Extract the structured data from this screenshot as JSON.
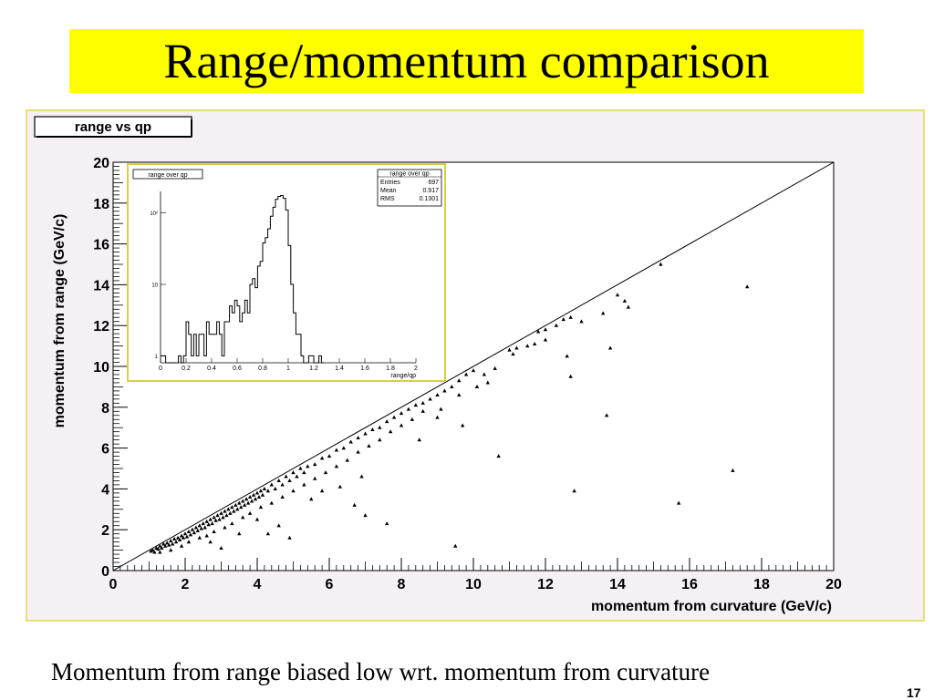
{
  "slide": {
    "title": "Range/momentum comparison",
    "caption": "Momentum from range biased low wrt. momentum from curvature",
    "number": "17"
  },
  "colors": {
    "title_bg": "#ffff00",
    "canvas_bg": "#f4f0f4",
    "frame": "#e8e070",
    "inset_frame": "#d8d040"
  },
  "chart_data": [
    {
      "type": "scatter",
      "title": "range vs qp",
      "xlabel": "momentum from curvature (GeV/c)",
      "ylabel": "momentum from range (GeV/c)",
      "xlim": [
        0,
        20
      ],
      "ylim": [
        0,
        20
      ],
      "xticks": [
        "0",
        "2",
        "4",
        "6",
        "8",
        "10",
        "12",
        "14",
        "16",
        "18",
        "20"
      ],
      "yticks": [
        "0",
        "2",
        "4",
        "6",
        "8",
        "10",
        "12",
        "14",
        "16",
        "18",
        "20"
      ],
      "grid": false,
      "reference_line": {
        "from": [
          0,
          0
        ],
        "to": [
          20,
          20
        ]
      },
      "points": [
        [
          1.05,
          0.95
        ],
        [
          1.1,
          1.0
        ],
        [
          1.15,
          0.9
        ],
        [
          1.2,
          1.1
        ],
        [
          1.25,
          1.05
        ],
        [
          1.3,
          1.2
        ],
        [
          1.35,
          1.1
        ],
        [
          1.4,
          1.3
        ],
        [
          1.45,
          1.2
        ],
        [
          1.5,
          1.35
        ],
        [
          1.55,
          1.25
        ],
        [
          1.6,
          1.45
        ],
        [
          1.65,
          1.3
        ],
        [
          1.7,
          1.55
        ],
        [
          1.75,
          1.4
        ],
        [
          1.8,
          1.6
        ],
        [
          1.85,
          1.5
        ],
        [
          1.9,
          1.7
        ],
        [
          1.95,
          1.6
        ],
        [
          2.0,
          1.8
        ],
        [
          2.05,
          1.65
        ],
        [
          2.1,
          1.9
        ],
        [
          2.15,
          1.75
        ],
        [
          2.2,
          2.0
        ],
        [
          2.25,
          1.85
        ],
        [
          2.3,
          2.1
        ],
        [
          2.35,
          1.95
        ],
        [
          2.4,
          2.2
        ],
        [
          2.45,
          2.05
        ],
        [
          2.5,
          2.3
        ],
        [
          2.55,
          2.1
        ],
        [
          2.6,
          2.4
        ],
        [
          2.65,
          2.25
        ],
        [
          2.7,
          2.5
        ],
        [
          2.75,
          2.3
        ],
        [
          2.8,
          2.6
        ],
        [
          2.85,
          2.45
        ],
        [
          2.9,
          2.7
        ],
        [
          2.95,
          2.5
        ],
        [
          3.0,
          2.8
        ],
        [
          3.05,
          2.6
        ],
        [
          3.1,
          2.9
        ],
        [
          3.15,
          2.7
        ],
        [
          3.2,
          3.0
        ],
        [
          3.25,
          2.8
        ],
        [
          3.3,
          3.1
        ],
        [
          3.35,
          2.9
        ],
        [
          3.4,
          3.2
        ],
        [
          3.45,
          3.0
        ],
        [
          3.5,
          3.3
        ],
        [
          3.55,
          3.1
        ],
        [
          3.6,
          3.4
        ],
        [
          3.65,
          3.2
        ],
        [
          3.7,
          3.5
        ],
        [
          3.75,
          3.3
        ],
        [
          3.8,
          3.6
        ],
        [
          3.85,
          3.4
        ],
        [
          3.9,
          3.7
        ],
        [
          3.95,
          3.5
        ],
        [
          4.0,
          3.8
        ],
        [
          4.05,
          3.6
        ],
        [
          4.1,
          3.9
        ],
        [
          4.15,
          3.7
        ],
        [
          4.2,
          4.0
        ],
        [
          4.3,
          3.9
        ],
        [
          4.4,
          4.2
        ],
        [
          4.5,
          4.0
        ],
        [
          4.6,
          4.4
        ],
        [
          4.7,
          4.2
        ],
        [
          4.8,
          4.6
        ],
        [
          4.9,
          4.4
        ],
        [
          5.0,
          4.8
        ],
        [
          5.1,
          4.6
        ],
        [
          5.2,
          5.0
        ],
        [
          5.3,
          4.8
        ],
        [
          5.4,
          5.1
        ],
        [
          5.6,
          5.2
        ],
        [
          5.8,
          5.5
        ],
        [
          6.0,
          5.6
        ],
        [
          6.2,
          5.9
        ],
        [
          6.4,
          6.0
        ],
        [
          6.6,
          6.3
        ],
        [
          6.8,
          6.5
        ],
        [
          7.0,
          6.7
        ],
        [
          7.2,
          6.9
        ],
        [
          7.4,
          7.0
        ],
        [
          7.6,
          7.3
        ],
        [
          7.8,
          7.5
        ],
        [
          8.0,
          7.7
        ],
        [
          8.2,
          7.9
        ],
        [
          8.4,
          8.1
        ],
        [
          8.6,
          8.2
        ],
        [
          8.8,
          8.4
        ],
        [
          9.0,
          8.6
        ],
        [
          9.2,
          8.8
        ],
        [
          9.4,
          9.0
        ],
        [
          9.6,
          9.3
        ],
        [
          9.8,
          9.6
        ],
        [
          10.0,
          9.8
        ],
        [
          10.3,
          9.6
        ],
        [
          10.6,
          9.9
        ],
        [
          11.0,
          10.8
        ],
        [
          11.2,
          10.9
        ],
        [
          11.5,
          11.0
        ],
        [
          11.8,
          11.7
        ],
        [
          12.0,
          11.8
        ],
        [
          12.3,
          12.0
        ],
        [
          12.5,
          12.3
        ],
        [
          12.7,
          12.4
        ],
        [
          13.0,
          12.2
        ],
        [
          13.6,
          12.6
        ],
        [
          14.0,
          13.5
        ],
        [
          14.2,
          13.2
        ],
        [
          14.3,
          12.9
        ],
        [
          15.2,
          15.0
        ],
        [
          17.6,
          13.9
        ],
        [
          1.3,
          0.9
        ],
        [
          1.6,
          1.0
        ],
        [
          1.9,
          1.2
        ],
        [
          2.1,
          1.4
        ],
        [
          2.4,
          1.6
        ],
        [
          2.6,
          1.7
        ],
        [
          2.8,
          1.9
        ],
        [
          3.1,
          2.1
        ],
        [
          3.3,
          2.3
        ],
        [
          3.6,
          2.6
        ],
        [
          3.8,
          2.8
        ],
        [
          4.1,
          3.1
        ],
        [
          4.4,
          3.3
        ],
        [
          4.7,
          3.6
        ],
        [
          5.0,
          3.9
        ],
        [
          5.3,
          4.2
        ],
        [
          5.6,
          4.5
        ],
        [
          5.9,
          4.8
        ],
        [
          6.2,
          5.1
        ],
        [
          6.5,
          5.4
        ],
        [
          6.8,
          5.8
        ],
        [
          7.1,
          6.1
        ],
        [
          7.4,
          6.4
        ],
        [
          7.7,
          6.8
        ],
        [
          8.0,
          7.1
        ],
        [
          8.3,
          7.4
        ],
        [
          8.6,
          7.8
        ],
        [
          9.1,
          7.9
        ],
        [
          9.6,
          8.6
        ],
        [
          10.1,
          9.0
        ],
        [
          2.7,
          1.4
        ],
        [
          3.0,
          1.1
        ],
        [
          3.5,
          1.8
        ],
        [
          4.0,
          2.5
        ],
        [
          4.3,
          1.8
        ],
        [
          4.6,
          2.2
        ],
        [
          4.9,
          1.6
        ],
        [
          5.5,
          3.5
        ],
        [
          5.8,
          3.9
        ],
        [
          6.3,
          4.1
        ],
        [
          6.7,
          3.2
        ],
        [
          6.9,
          4.6
        ],
        [
          7.0,
          2.7
        ],
        [
          7.6,
          2.3
        ],
        [
          8.5,
          6.4
        ],
        [
          9.0,
          7.5
        ],
        [
          9.5,
          1.2
        ],
        [
          9.7,
          7.1
        ],
        [
          10.7,
          5.6
        ],
        [
          12.6,
          10.5
        ],
        [
          12.7,
          9.5
        ],
        [
          12.8,
          3.9
        ],
        [
          13.7,
          7.6
        ],
        [
          13.8,
          10.9
        ],
        [
          15.7,
          3.3
        ],
        [
          17.2,
          4.9
        ],
        [
          12.0,
          11.3
        ],
        [
          11.1,
          10.6
        ],
        [
          10.4,
          9.2
        ],
        [
          11.7,
          11.1
        ]
      ]
    },
    {
      "type": "histogram",
      "title": "range over qp",
      "xlabel": "range/qp",
      "ylabel": "",
      "log_y": true,
      "xlim": [
        0,
        2
      ],
      "ylim": [
        0.8,
        200
      ],
      "xticks": [
        "0",
        "0.2",
        "0.4",
        "0.6",
        "0.8",
        "1",
        "1.2",
        "1.4",
        "1.6",
        "1.8",
        "2"
      ],
      "yticks": [
        "1",
        "10",
        "10²"
      ],
      "stats": {
        "title": "range over qp",
        "rows": [
          {
            "label": "Entries",
            "value": "697"
          },
          {
            "label": "Mean",
            "value": "0.917"
          },
          {
            "label": "RMS",
            "value": "0.1301"
          }
        ]
      },
      "bins": [
        [
          0.0,
          0.02,
          1
        ],
        [
          0.02,
          0.04,
          1
        ],
        [
          0.04,
          0.06,
          0.8
        ],
        [
          0.06,
          0.08,
          0.8
        ],
        [
          0.08,
          0.1,
          0.8
        ],
        [
          0.1,
          0.12,
          0.8
        ],
        [
          0.12,
          0.14,
          0.8
        ],
        [
          0.14,
          0.16,
          1
        ],
        [
          0.16,
          0.18,
          0.8
        ],
        [
          0.18,
          0.2,
          1
        ],
        [
          0.2,
          0.22,
          3
        ],
        [
          0.22,
          0.24,
          2
        ],
        [
          0.24,
          0.26,
          1
        ],
        [
          0.26,
          0.28,
          2
        ],
        [
          0.28,
          0.3,
          1
        ],
        [
          0.3,
          0.32,
          2
        ],
        [
          0.32,
          0.34,
          2
        ],
        [
          0.34,
          0.36,
          1
        ],
        [
          0.36,
          0.38,
          3
        ],
        [
          0.38,
          0.4,
          2
        ],
        [
          0.4,
          0.42,
          2
        ],
        [
          0.42,
          0.44,
          2
        ],
        [
          0.44,
          0.46,
          3
        ],
        [
          0.46,
          0.48,
          2
        ],
        [
          0.48,
          0.5,
          1
        ],
        [
          0.5,
          0.52,
          3
        ],
        [
          0.52,
          0.54,
          3
        ],
        [
          0.54,
          0.56,
          5
        ],
        [
          0.56,
          0.58,
          4
        ],
        [
          0.58,
          0.6,
          6
        ],
        [
          0.6,
          0.62,
          5
        ],
        [
          0.62,
          0.64,
          3
        ],
        [
          0.64,
          0.66,
          4
        ],
        [
          0.66,
          0.68,
          6
        ],
        [
          0.68,
          0.7,
          4
        ],
        [
          0.7,
          0.72,
          10
        ],
        [
          0.72,
          0.74,
          12
        ],
        [
          0.74,
          0.76,
          9
        ],
        [
          0.76,
          0.78,
          18
        ],
        [
          0.78,
          0.8,
          21
        ],
        [
          0.8,
          0.82,
          38
        ],
        [
          0.82,
          0.84,
          45
        ],
        [
          0.84,
          0.86,
          60
        ],
        [
          0.86,
          0.88,
          90
        ],
        [
          0.88,
          0.9,
          120
        ],
        [
          0.9,
          0.92,
          155
        ],
        [
          0.92,
          0.94,
          170
        ],
        [
          0.94,
          0.96,
          175
        ],
        [
          0.96,
          0.98,
          160
        ],
        [
          0.98,
          1.0,
          110
        ],
        [
          1.0,
          1.02,
          35
        ],
        [
          1.02,
          1.04,
          10
        ],
        [
          1.04,
          1.06,
          4
        ],
        [
          1.06,
          1.08,
          2
        ],
        [
          1.08,
          1.1,
          2
        ],
        [
          1.1,
          1.12,
          1
        ],
        [
          1.12,
          1.14,
          0.8
        ],
        [
          1.14,
          1.16,
          0.8
        ],
        [
          1.16,
          1.18,
          1
        ],
        [
          1.18,
          1.2,
          1
        ],
        [
          1.2,
          1.22,
          0.8
        ],
        [
          1.22,
          1.24,
          0.8
        ],
        [
          1.24,
          1.26,
          1
        ],
        [
          1.26,
          1.28,
          0.8
        ]
      ]
    }
  ]
}
